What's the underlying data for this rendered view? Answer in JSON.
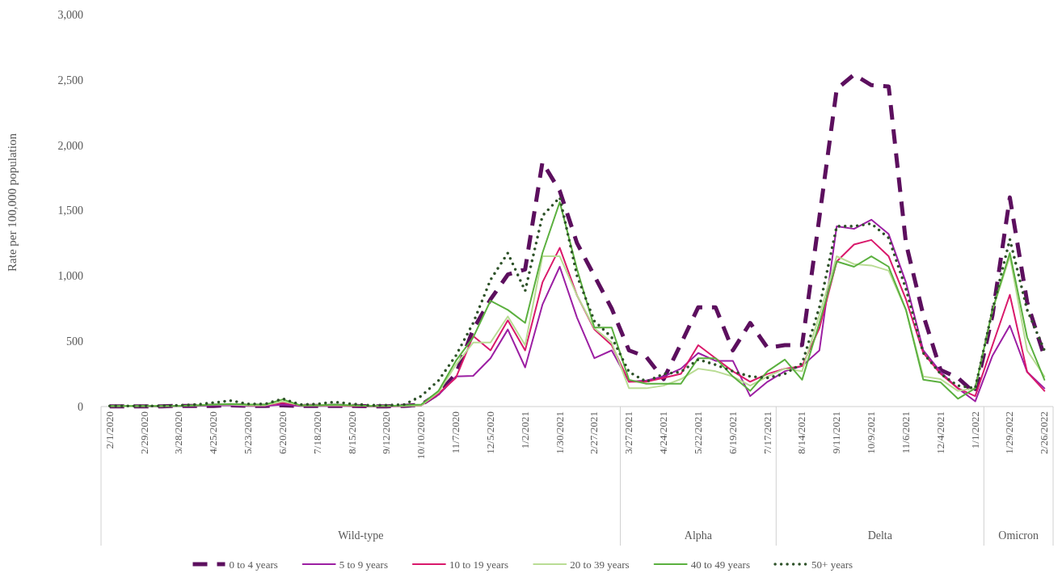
{
  "chart_data": {
    "type": "line",
    "ylabel": "Rate per 100,000 population",
    "categories": [
      "2/1/2020",
      null,
      "2/29/2020",
      null,
      "3/28/2020",
      null,
      "4/25/2020",
      null,
      "5/23/2020",
      null,
      "6/20/2020",
      null,
      "7/18/2020",
      null,
      "8/15/2020",
      null,
      "9/12/2020",
      null,
      "10/10/2020",
      null,
      "11/7/2020",
      null,
      "12/5/2020",
      null,
      "1/2/2021",
      null,
      "1/30/2021",
      null,
      "2/27/2021",
      null,
      "3/27/2021",
      null,
      "4/24/2021",
      null,
      "5/22/2021",
      null,
      "6/19/2021",
      null,
      "7/17/2021",
      null,
      "8/14/2021",
      null,
      "9/11/2021",
      null,
      "10/9/2021",
      null,
      "11/6/2021",
      null,
      "12/4/2021",
      null,
      "1/1/2022",
      null,
      "1/29/2022",
      null,
      "2/26/2022"
    ],
    "ylim": [
      0,
      3000
    ],
    "yticks": [
      0,
      500,
      {
        "value": 1000,
        "label": "1,000"
      },
      {
        "value": 1500,
        "label": "1,500"
      },
      {
        "value": 2000,
        "label": "2,000"
      },
      {
        "value": 2500,
        "label": "2,500"
      },
      {
        "value": 3000,
        "label": "3,000"
      }
    ],
    "grid": false,
    "legend": "bottom",
    "annotations": [
      "Wild-type",
      "Alpha",
      "Delta",
      "Omicron"
    ],
    "series": [
      {
        "name": "0 to 4 years",
        "color": "#5c0f5e",
        "line_style": "dashed",
        "values": [
          2,
          2,
          2,
          2,
          5,
          5,
          5,
          10,
          5,
          5,
          10,
          5,
          5,
          5,
          5,
          2,
          2,
          5,
          15,
          100,
          250,
          590,
          820,
          1010,
          1050,
          1870,
          1650,
          1250,
          1000,
          750,
          430,
          380,
          210,
          480,
          760,
          760,
          430,
          640,
          450,
          470,
          470,
          1450,
          2430,
          2540,
          2460,
          2450,
          1250,
          700,
          280,
          220,
          100,
          700,
          1600,
          800,
          380
        ]
      },
      {
        "name": "5 to 9 years",
        "color": "#9c1fa3",
        "line_style": "solid",
        "values": [
          null,
          null,
          2,
          2,
          5,
          5,
          10,
          10,
          5,
          5,
          15,
          5,
          5,
          5,
          5,
          2,
          2,
          5,
          10,
          90,
          230,
          235,
          370,
          590,
          300,
          780,
          1070,
          680,
          370,
          430,
          190,
          200,
          230,
          290,
          410,
          350,
          350,
          80,
          190,
          270,
          310,
          430,
          1380,
          1360,
          1430,
          1320,
          950,
          430,
          265,
          140,
          40,
          390,
          620,
          265,
          140
        ]
      },
      {
        "name": "10 to 19 years",
        "color": "#d9196b",
        "line_style": "solid",
        "values": [
          null,
          null,
          null,
          null,
          null,
          null,
          null,
          null,
          10,
          10,
          30,
          10,
          10,
          10,
          5,
          5,
          5,
          5,
          10,
          100,
          220,
          540,
          430,
          660,
          430,
          950,
          1215,
          850,
          590,
          470,
          190,
          190,
          220,
          250,
          470,
          370,
          270,
          190,
          250,
          290,
          310,
          600,
          1110,
          1240,
          1275,
          1150,
          820,
          410,
          250,
          140,
          80,
          470,
          855,
          265,
          120
        ]
      },
      {
        "name": "20 to 39 years",
        "color": "#b9dc94",
        "line_style": "solid",
        "values": [
          3,
          3,
          3,
          3,
          5,
          10,
          15,
          15,
          10,
          10,
          40,
          10,
          10,
          10,
          10,
          5,
          5,
          5,
          10,
          110,
          320,
          490,
          490,
          690,
          470,
          1150,
          1150,
          850,
          600,
          490,
          140,
          140,
          160,
          210,
          290,
          270,
          230,
          160,
          230,
          290,
          270,
          700,
          1150,
          1090,
          1080,
          1040,
          740,
          230,
          210,
          120,
          140,
          740,
          1150,
          430,
          230
        ]
      },
      {
        "name": "40 to 49 years",
        "color": "#5bb03f",
        "line_style": "solid",
        "values": [
          5,
          5,
          5,
          5,
          5,
          10,
          15,
          20,
          15,
          15,
          55,
          10,
          10,
          15,
          10,
          5,
          5,
          10,
          15,
          120,
          350,
          530,
          810,
          740,
          640,
          1175,
          1565,
          1050,
          605,
          605,
          205,
          175,
          175,
          175,
          370,
          370,
          230,
          120,
          270,
          360,
          205,
          640,
          1110,
          1070,
          1150,
          1070,
          740,
          205,
          185,
          60,
          140,
          740,
          1175,
          530,
          205
        ]
      },
      {
        "name": "50+ years",
        "color": "#2e5229",
        "line_style": "dotted",
        "values": [
          5,
          5,
          5,
          5,
          10,
          15,
          30,
          45,
          20,
          20,
          60,
          15,
          20,
          35,
          20,
          10,
          10,
          15,
          80,
          200,
          390,
          640,
          970,
          1175,
          885,
          1460,
          1600,
          1000,
          655,
          530,
          265,
          190,
          250,
          265,
          360,
          320,
          270,
          230,
          220,
          250,
          330,
          760,
          1380,
          1380,
          1400,
          1290,
          900,
          410,
          250,
          160,
          140,
          740,
          1280,
          740,
          430
        ]
      }
    ]
  }
}
